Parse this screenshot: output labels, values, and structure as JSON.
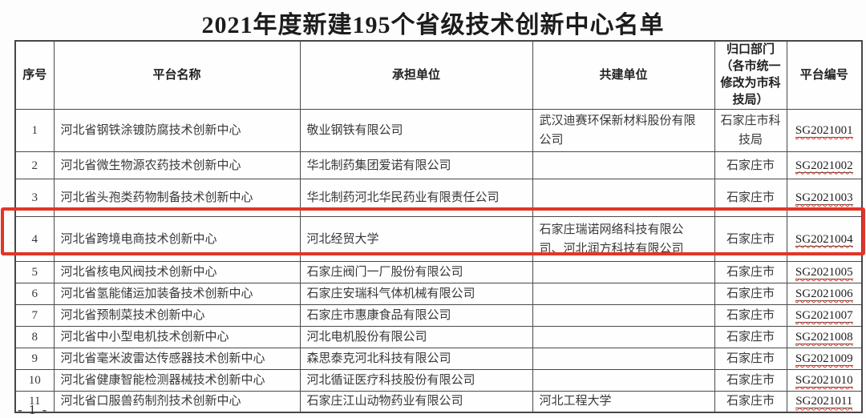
{
  "page": {
    "title": "2021年度新建195个省级技术创新中心名单",
    "page_label": "- 1 -"
  },
  "colors": {
    "highlight_red": "#e23528",
    "spellcheck_wavy_red": "#e0301e",
    "table_border": "#4a4a4a",
    "text": "#383838"
  },
  "highlight": {
    "note": "red-box-emphasis",
    "highlighted_row_no": "4"
  },
  "table": {
    "headers": [
      "序号",
      "平台名称",
      "承担单位",
      "共建单位",
      "归口部门（各市统一修改为市科技局）",
      "平台编号"
    ],
    "rows": [
      {
        "no": "1",
        "name": "河北省钢铁涂镀防腐技术创新中心",
        "undertaker": "敬业钢铁有限公司",
        "partner": "武汉迪赛环保新材料股份有限公司",
        "department": "石家庄市科技局",
        "code": "SG2021001",
        "highlighted": false
      },
      {
        "no": "2",
        "name": "河北省微生物源农药技术创新中心",
        "undertaker": "华北制药集团爱诺有限公司",
        "partner": "",
        "department": "石家庄市",
        "code": "SG2021002",
        "highlighted": false
      },
      {
        "no": "3",
        "name": "河北省头孢类药物制备技术创新中心",
        "undertaker": "华北制药河北华民药业有限责任公司",
        "partner": "",
        "department": "石家庄市",
        "code": "SG2021003",
        "highlighted": false
      },
      {
        "no": "4",
        "name": "河北省跨境电商技术创新中心",
        "undertaker": "河北经贸大学",
        "partner": "石家庄瑞诺网络科技有限公司、河北润方科技有限公司",
        "department": "石家庄市",
        "code": "SG2021004",
        "highlighted": true
      },
      {
        "no": "5",
        "name": "河北省核电风阀技术创新中心",
        "undertaker": "石家庄阀门一厂股份有限公司",
        "partner": "",
        "department": "石家庄市",
        "code": "SG2021005",
        "highlighted": false
      },
      {
        "no": "6",
        "name": "河北省氢能储运加装备技术创新中心",
        "undertaker": "石家庄安瑞科气体机械有限公司",
        "partner": "",
        "department": "石家庄市",
        "code": "SG2021006",
        "highlighted": false
      },
      {
        "no": "7",
        "name": "河北省预制菜技术创新中心",
        "undertaker": "石家庄市惠康食品有限公司",
        "partner": "",
        "department": "石家庄市",
        "code": "SG2021007",
        "highlighted": false
      },
      {
        "no": "8",
        "name": "河北省中小型电机技术创新中心",
        "undertaker": "河北电机股份有限公司",
        "partner": "",
        "department": "石家庄市",
        "code": "SG2021008",
        "highlighted": false
      },
      {
        "no": "9",
        "name": "河北省毫米波雷达传感器技术创新中心",
        "undertaker": "森思泰克河北科技有限公司",
        "partner": "",
        "department": "石家庄市",
        "code": "SG2021009",
        "highlighted": false
      },
      {
        "no": "10",
        "name": "河北省健康智能检测器械技术创新中心",
        "undertaker": "河北循证医疗科技股份有限公司",
        "partner": "",
        "department": "石家庄市",
        "code": "SG2021010",
        "highlighted": false
      },
      {
        "no": "11",
        "name": "河北省口服兽药制剂技术创新中心",
        "undertaker": "石家庄江山动物药业有限公司",
        "partner": "河北工程大学",
        "department": "石家庄市",
        "code": "SG2021011",
        "highlighted": false
      }
    ]
  }
}
